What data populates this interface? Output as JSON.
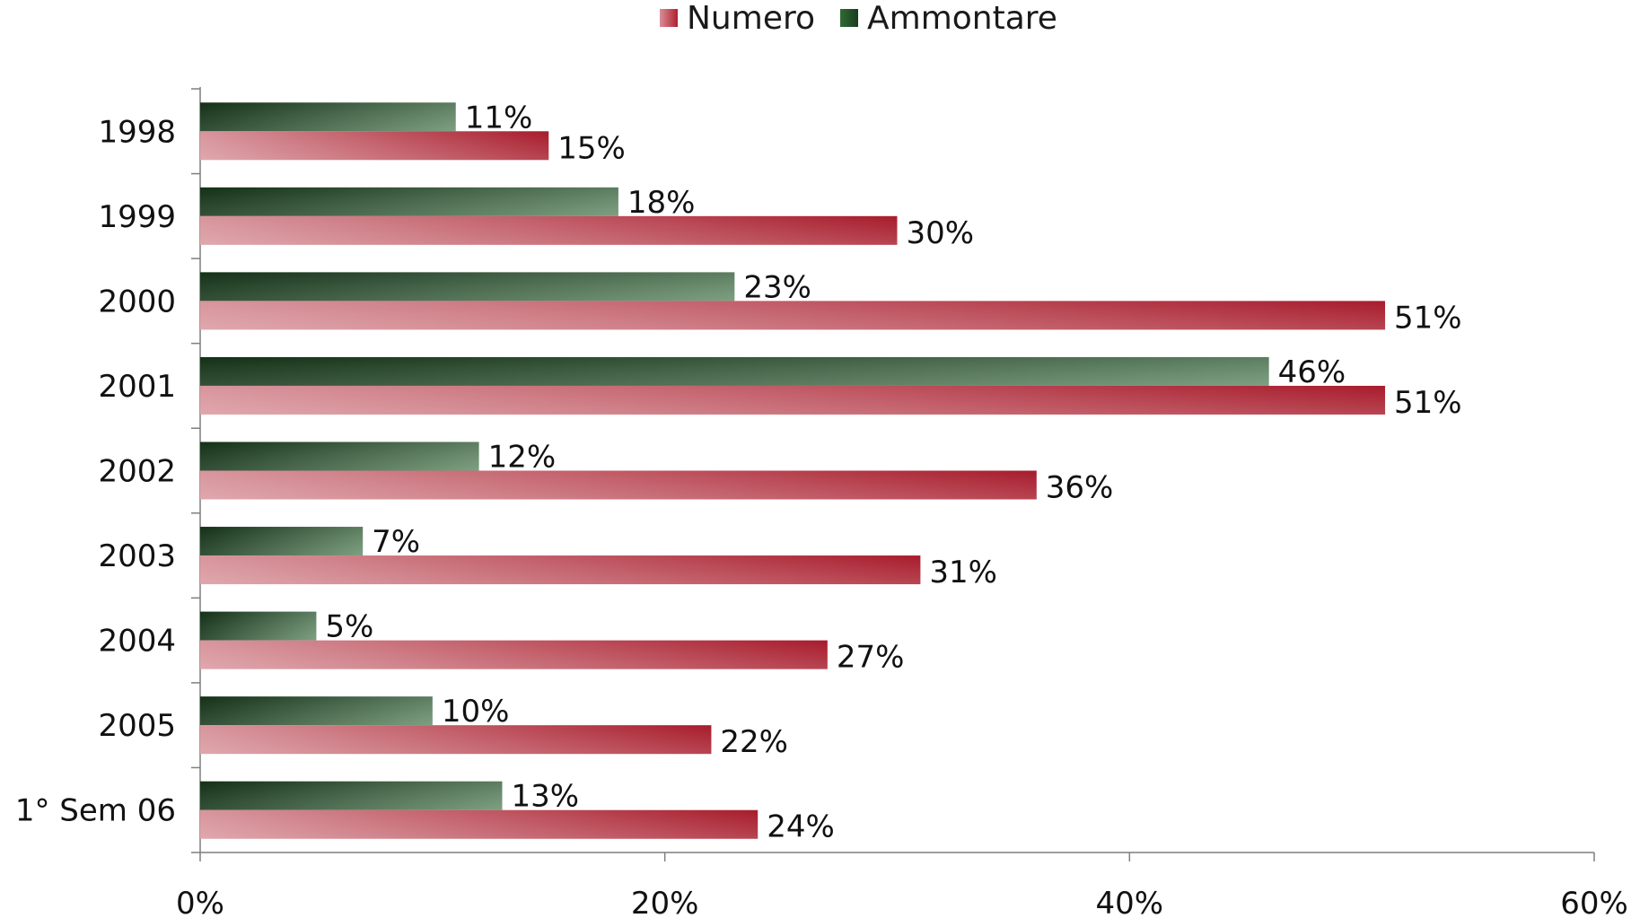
{
  "chart_data": {
    "type": "bar",
    "orientation": "horizontal",
    "categories": [
      "1998",
      "1999",
      "2000",
      "2001",
      "2002",
      "2003",
      "2004",
      "2005",
      "1° Sem 06"
    ],
    "series": [
      {
        "name": "Numero",
        "values": [
          15,
          30,
          51,
          51,
          36,
          31,
          27,
          22,
          24
        ],
        "color": "#b02030"
      },
      {
        "name": "Ammontare",
        "values": [
          11,
          18,
          23,
          46,
          12,
          7,
          5,
          10,
          13
        ],
        "color": "#2f5f34"
      }
    ],
    "data_labels": {
      "Numero": [
        "15%",
        "30%",
        "51%",
        "51%",
        "36%",
        "31%",
        "27%",
        "22%",
        "24%"
      ],
      "Ammontare": [
        "11%",
        "18%",
        "23%",
        "46%",
        "12%",
        "7%",
        "5%",
        "10%",
        "13%"
      ]
    },
    "x_ticks": [
      "0%",
      "20%",
      "40%",
      "60%"
    ],
    "xlim": [
      0,
      60
    ],
    "title": "",
    "xlabel": "",
    "ylabel": "",
    "grid": false,
    "legend_position": "top-center"
  },
  "legend": {
    "numero_label": "Numero",
    "ammontare_label": "Ammontare"
  }
}
